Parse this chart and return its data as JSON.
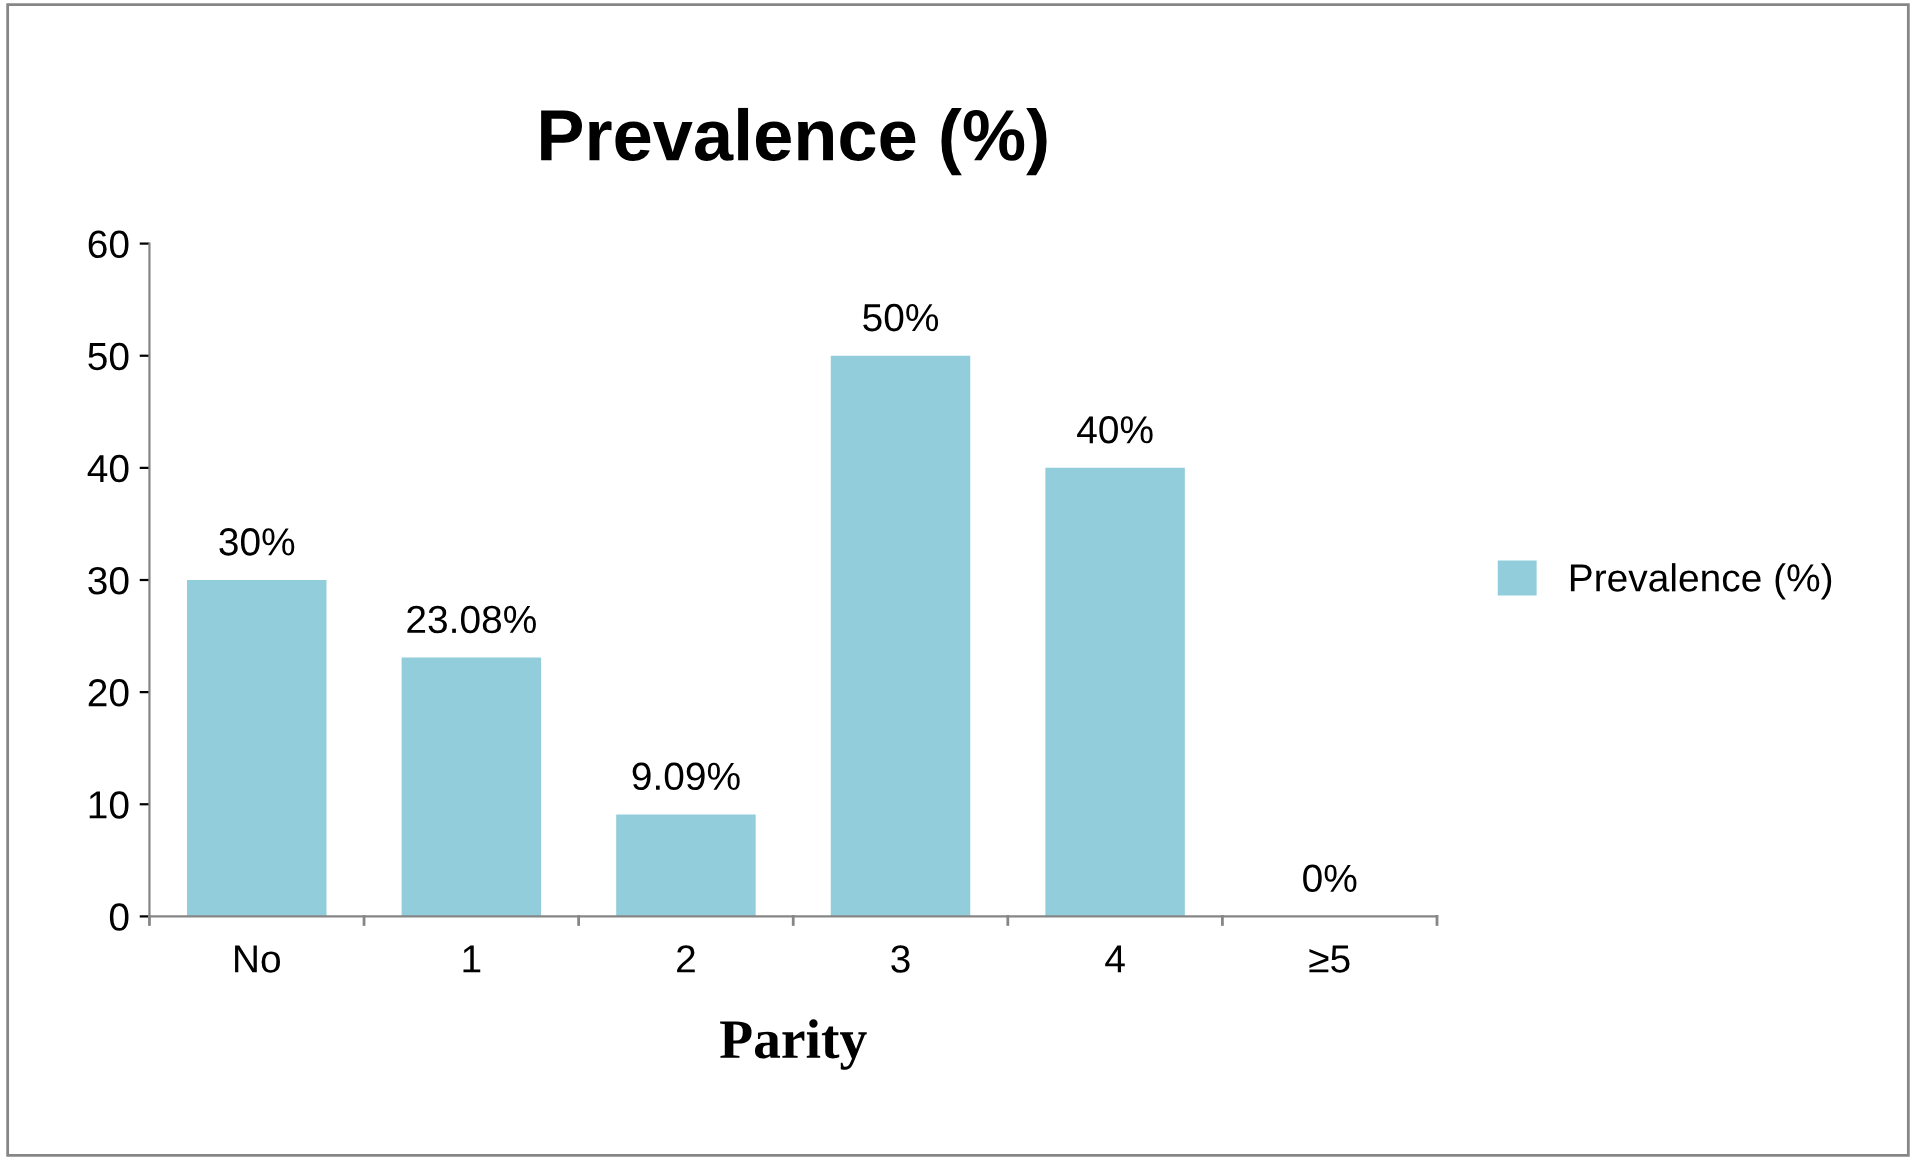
{
  "chart_data": {
    "type": "bar",
    "title": "Prevalence (%)",
    "xlabel": "Parity",
    "categories": [
      "No",
      "1",
      "2",
      "3",
      "4",
      "≥5"
    ],
    "series": [
      {
        "name": "Prevalence (%)",
        "color": "#92cddc",
        "values": [
          30,
          23.08,
          9.09,
          50,
          40,
          0
        ],
        "value_labels": [
          "30%",
          "23.08%",
          "9.09%",
          "50%",
          "40%",
          "0%"
        ]
      }
    ],
    "ylim": [
      0,
      60
    ],
    "yticks": [
      0,
      10,
      20,
      30,
      40,
      50,
      60
    ],
    "grid": false,
    "legend": "right"
  }
}
